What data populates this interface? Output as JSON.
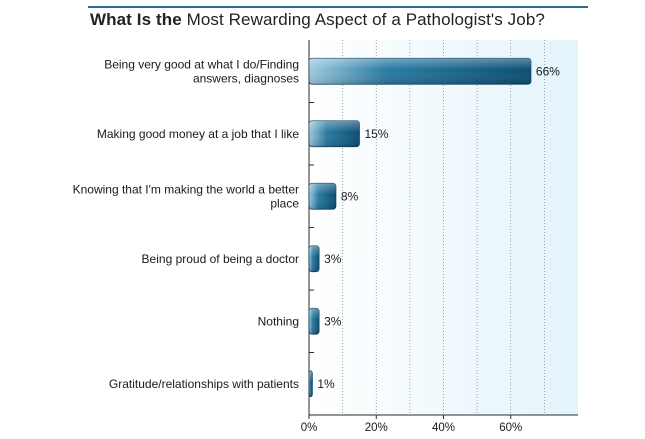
{
  "chart_data": {
    "type": "bar",
    "orientation": "horizontal",
    "title_bold": "What Is the",
    "title_rest": "Most Rewarding Aspect of a Pathologist's Job?",
    "categories": [
      [
        "Being very good at what I do/Finding",
        "answers, diagnoses"
      ],
      [
        "Making good money at a job that I like"
      ],
      [
        "Knowing that I'm making the world a better",
        "place"
      ],
      [
        "Being proud of being a doctor"
      ],
      [
        "Nothing"
      ],
      [
        "Gratitude/relationships with patients"
      ]
    ],
    "values": [
      66,
      15,
      8,
      3,
      3,
      1
    ],
    "value_labels": [
      "66%",
      "15%",
      "8%",
      "3%",
      "3%",
      "1%"
    ],
    "xlim": [
      0,
      80
    ],
    "xticks": [
      0,
      20,
      40,
      60
    ],
    "xtick_labels": [
      "0%",
      "20%",
      "40%",
      "60%"
    ],
    "grid": "vertical dotted",
    "colors": {
      "bar_dark": "#0b4f74",
      "bar_light": "#8ec3d9",
      "plot_bg": "#e7f6fb",
      "axis": "#2b2b2b"
    }
  }
}
